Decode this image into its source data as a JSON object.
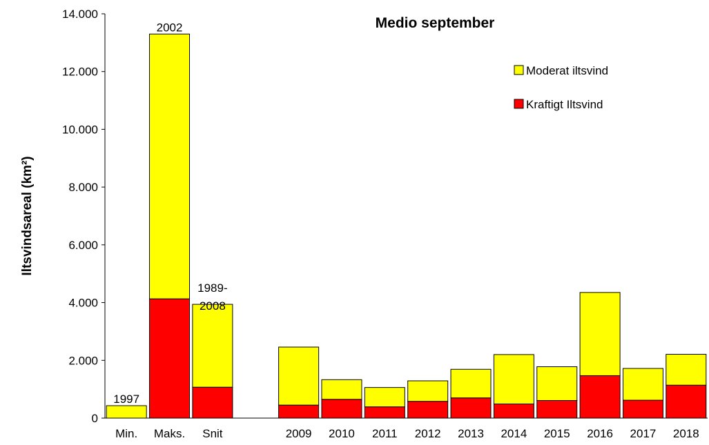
{
  "chart_data": {
    "type": "stacked_bar",
    "title": "Medio september",
    "y_label": "Iltsvindsareal (km²)",
    "categories": [
      "Min.",
      "Maks.",
      "Snit",
      null,
      "2009",
      "2010",
      "2011",
      "2012",
      "2013",
      "2014",
      "2015",
      "2016",
      "2017",
      "2018"
    ],
    "series": [
      {
        "name": "Kraftigt Iltsvind",
        "color": "#ff0000",
        "values": [
          0,
          4130,
          1070,
          null,
          450,
          650,
          390,
          580,
          700,
          490,
          610,
          1470,
          620,
          1140
        ]
      },
      {
        "name": "Moderat iltsvind",
        "color": "#ffff00",
        "values": [
          430,
          9170,
          2870,
          null,
          2010,
          680,
          670,
          710,
          990,
          1710,
          1170,
          2880,
          1100,
          1070
        ]
      }
    ],
    "annotations": [
      "1997",
      "2002",
      "1989-\n2008"
    ],
    "ylim": [
      0,
      14000
    ],
    "yticks": [
      0,
      {
        "value": 2000,
        "label": "2.000"
      },
      {
        "value": 4000,
        "label": "4.000"
      },
      {
        "value": 6000,
        "label": "6.000"
      },
      {
        "value": 8000,
        "label": "8.000"
      },
      {
        "value": 10000,
        "label": "10.000"
      },
      {
        "value": 12000,
        "label": "12.000"
      },
      {
        "value": 14000,
        "label": "14.000"
      }
    ],
    "grid": false,
    "legend": "top-right"
  }
}
